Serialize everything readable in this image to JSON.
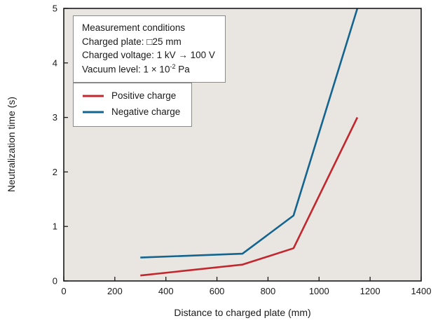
{
  "colors": {
    "positive": "#c1272d",
    "negative": "#13648e",
    "plot_bg": "#e9e6e2",
    "frame": "#1a1a1a",
    "text": "#1a1a1a"
  },
  "conditions": {
    "title": "Measurement conditions",
    "line1": "Charged plate: □25 mm",
    "line2": "Charged voltage: 1 kV → 100 V",
    "line3_base": "Vacuum level: 1 × 10",
    "line3_sup": "-2",
    "line3_suffix": " Pa"
  },
  "legend": [
    {
      "label": "Positive charge",
      "color": "#c1272d"
    },
    {
      "label": "Negative charge",
      "color": "#13648e"
    }
  ],
  "chart_data": {
    "type": "line",
    "title": "",
    "xlabel": "Distance to charged plate (mm)",
    "ylabel": "Neutralization time (s)",
    "xlim": [
      0,
      1400
    ],
    "ylim": [
      0,
      5
    ],
    "xticks": [
      0,
      200,
      400,
      600,
      800,
      1000,
      1200,
      1400
    ],
    "yticks": [
      0,
      1,
      2,
      3,
      4,
      5
    ],
    "grid": false,
    "legend_position": "upper-left",
    "series": [
      {
        "name": "Positive charge",
        "color": "#c1272d",
        "x": [
          300,
          700,
          900,
          1150
        ],
        "y": [
          0.1,
          0.3,
          0.6,
          3.0
        ]
      },
      {
        "name": "Negative charge",
        "color": "#13648e",
        "x": [
          300,
          700,
          900,
          1150
        ],
        "y": [
          0.43,
          0.5,
          1.2,
          5.0
        ]
      }
    ]
  }
}
